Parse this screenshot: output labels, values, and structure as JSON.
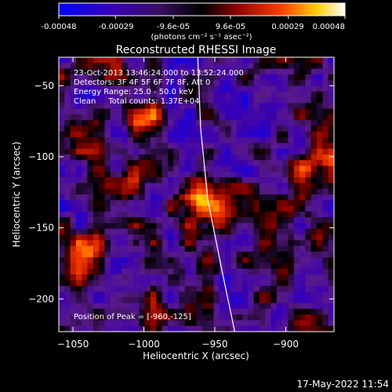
{
  "chart_data": {
    "type": "heatmap",
    "title": "Reconstructed RHESSI Image",
    "xlabel": "Heliocentric X (arcsec)",
    "ylabel": "Heliocentric Y (arcsec)",
    "xlim": [
      -1060,
      -866
    ],
    "ylim": [
      -223,
      -30
    ],
    "x_ticks": [
      -1050,
      -1000,
      -950,
      -900
    ],
    "y_ticks": [
      -50,
      -100,
      -150,
      -200
    ],
    "colorbar": {
      "range": [
        -0.00048,
        0.00048
      ],
      "tick_values": [
        -0.00048,
        -0.00029,
        -9.6e-05,
        9.6e-05,
        0.00029,
        0.00048
      ],
      "tick_labels": [
        "-0.00048",
        "-0.00029",
        "-9.6e-05",
        "9.6e-05",
        "0.00029",
        "0.00048"
      ],
      "unit_label": "(photons cm⁻² s⁻¹ asec⁻²)",
      "colors": [
        "#0000ff",
        "#3a00b0",
        "#5a1a8c",
        "#000000",
        "#8a0000",
        "#ff4000",
        "#ffcc00",
        "#ffffff"
      ]
    },
    "annotations": {
      "time_range": "23-Oct-2013 13:46:24.000 to 13:52:24.000",
      "detectors": "Detectors: 3F 4F 5F 6F 7F 8F, Att 0",
      "energy_range": "Energy Range: 25.0 - 50.0 keV",
      "method_counts": "Clean     Total counts: 1.37E+04",
      "peak_position": "Position of Peak = [-960,-125]"
    },
    "peak": {
      "x": -960,
      "y": -125
    },
    "sources": [
      {
        "x": -960,
        "y": -125,
        "amp": 1.0
      },
      {
        "x": -878,
        "y": -105,
        "amp": 0.8
      },
      {
        "x": -1043,
        "y": -165,
        "amp": 0.45
      },
      {
        "x": -1000,
        "y": -75,
        "amp": 0.45
      },
      {
        "x": -945,
        "y": -145,
        "amp": 0.55
      },
      {
        "x": -1020,
        "y": -120,
        "amp": 0.35
      }
    ],
    "limb_curve": [
      {
        "x": -962,
        "y": -30
      },
      {
        "x": -960,
        "y": -80
      },
      {
        "x": -955,
        "y": -130
      },
      {
        "x": -945,
        "y": -180
      },
      {
        "x": -936,
        "y": -223
      }
    ]
  },
  "footer": {
    "timestamp": "17-May-2022 11:54"
  }
}
